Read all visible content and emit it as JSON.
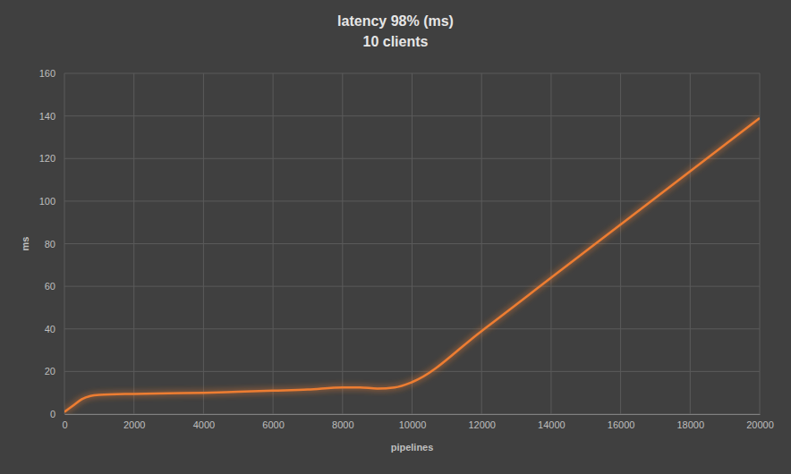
{
  "chart_data": {
    "type": "line",
    "title": "latency 98% (ms)",
    "subtitle": "10 clients",
    "x_label": "pipelines",
    "y_label": "ms",
    "x": [
      0,
      250,
      500,
      750,
      1000,
      2000,
      3000,
      4000,
      5000,
      6000,
      7000,
      8000,
      8500,
      9000,
      9500,
      10000,
      12000,
      14000,
      16000,
      18000,
      20000
    ],
    "values": [
      1,
      4,
      7,
      8.5,
      9,
      9.5,
      9.8,
      10,
      10.5,
      11,
      11.5,
      12.5,
      12.5,
      12,
      12.5,
      15,
      39,
      64,
      89,
      114,
      139
    ],
    "color": "#ed7d31",
    "xlim": [
      0,
      20000
    ],
    "xticks": [
      0,
      2000,
      4000,
      6000,
      8000,
      10000,
      12000,
      14000,
      16000,
      18000,
      20000
    ],
    "ylim": [
      0,
      160
    ],
    "yticks": [
      0,
      20,
      40,
      60,
      80,
      100,
      120,
      140,
      160
    ],
    "grid": true
  }
}
